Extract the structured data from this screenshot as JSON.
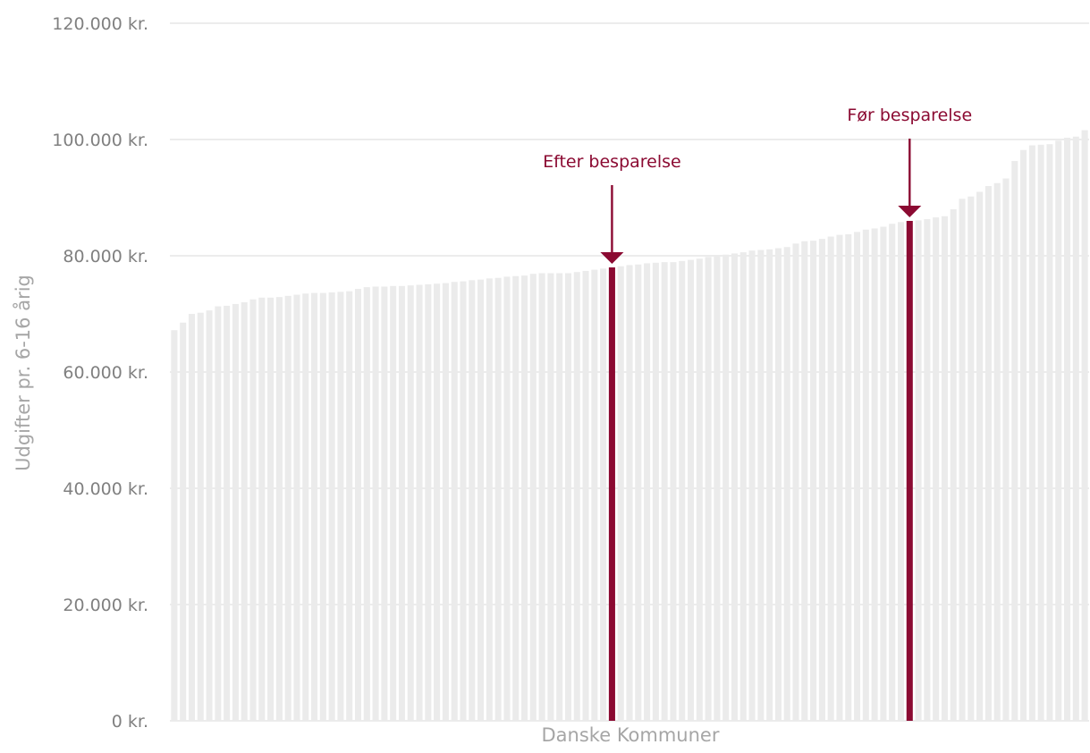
{
  "chart_data": {
    "type": "bar",
    "title": "",
    "xlabel": "Danske Kommuner",
    "ylabel": "Udgifter pr. 6-16 årig",
    "ylim": [
      0,
      120000
    ],
    "y_ticks": [
      0,
      20000,
      40000,
      60000,
      80000,
      100000,
      120000
    ],
    "y_tick_labels": [
      "0 kr.",
      "20.000 kr.",
      "40.000 kr.",
      "60.000 kr.",
      "80.000 kr.",
      "100.000 kr.",
      "120.000 kr."
    ],
    "grid": true,
    "legend": "none",
    "colors": {
      "bar": "#ebebeb",
      "highlight": "#8b0a32",
      "grid": "#e6e6e6",
      "tick_text": "#808080",
      "axis_title": "#a6a6a6"
    },
    "values": [
      67200,
      68500,
      70000,
      70200,
      70600,
      71300,
      71400,
      71700,
      72000,
      72500,
      72800,
      72800,
      72900,
      73100,
      73300,
      73500,
      73600,
      73600,
      73700,
      73800,
      73900,
      74300,
      74600,
      74700,
      74700,
      74800,
      74800,
      74900,
      75000,
      75100,
      75200,
      75300,
      75500,
      75600,
      75800,
      75900,
      76100,
      76200,
      76400,
      76500,
      76600,
      76900,
      77000,
      77000,
      77000,
      77000,
      77200,
      77400,
      77600,
      77800,
      78000,
      78200,
      78400,
      78500,
      78700,
      78800,
      78900,
      78900,
      79100,
      79300,
      79500,
      79800,
      80000,
      80200,
      80400,
      80600,
      80900,
      81000,
      81100,
      81300,
      81500,
      82100,
      82500,
      82600,
      82900,
      83300,
      83600,
      83700,
      84100,
      84500,
      84700,
      85000,
      85500,
      85800,
      86000,
      86100,
      86300,
      86600,
      86800,
      88000,
      89800,
      90200,
      91000,
      92000,
      92500,
      93300,
      96300,
      98200,
      99000,
      99100,
      99200,
      99800,
      100300,
      100500,
      101600
    ],
    "highlights": [
      {
        "index": 50,
        "label": "Efter besparelse"
      },
      {
        "index": 84,
        "label": "Før besparelse"
      }
    ]
  }
}
